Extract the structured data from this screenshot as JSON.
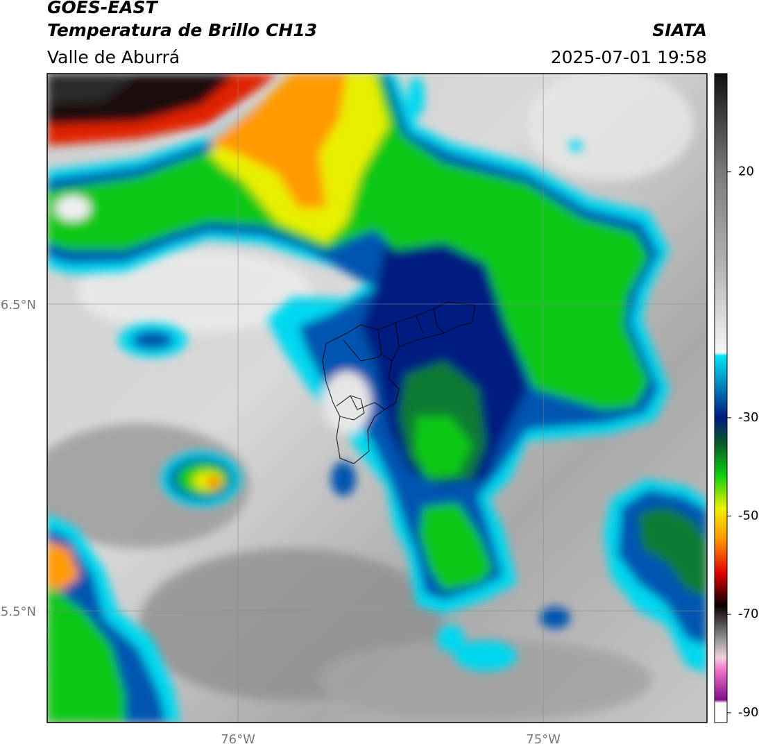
{
  "map": {
    "title": "GOES-EAST",
    "subtitle": "Temperatura de Brillo CH13",
    "region": "Valle de Aburrá",
    "source": "SIATA",
    "timestamp": "2025-07-01 19:58",
    "xlim": [
      -76.625,
      -74.464
    ],
    "ylim": [
      5.136,
      7.251
    ],
    "xticks": [
      {
        "value": -76,
        "label": "76°W"
      },
      {
        "value": -75,
        "label": "75°W"
      }
    ],
    "yticks": [
      {
        "value": 6.5,
        "label": "6.5°N"
      },
      {
        "value": 5.5,
        "label": "5.5°N"
      }
    ],
    "grid": true,
    "colorbar": {
      "lim": [
        -92,
        40
      ],
      "ticks": [
        20,
        -30,
        -50,
        -70,
        -90
      ]
    }
  }
}
